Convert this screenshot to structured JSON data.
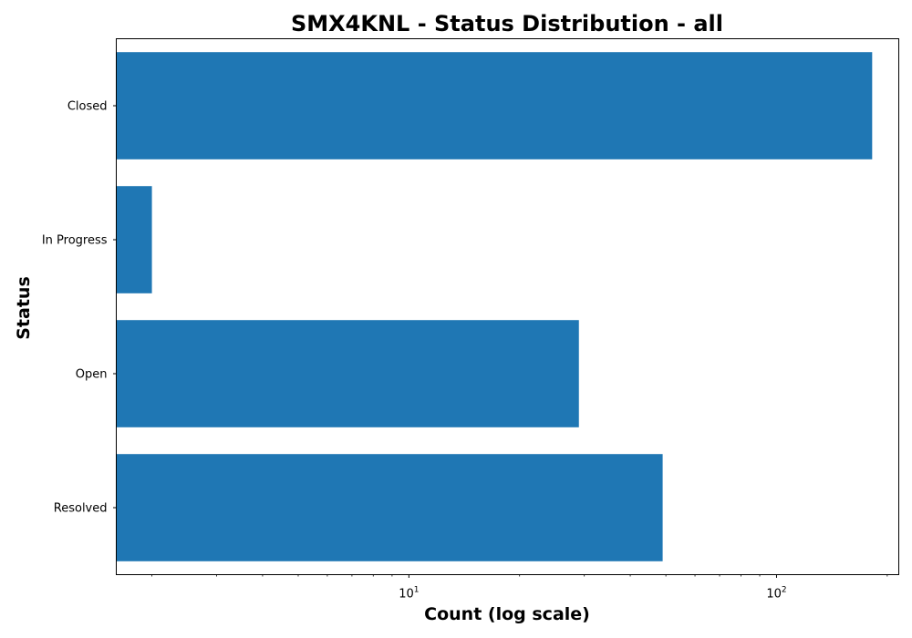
{
  "chart_data": {
    "type": "bar",
    "orientation": "horizontal",
    "title": "SMX4KNL - Status Distribution - all",
    "xlabel": "Count (log scale)",
    "ylabel": "Status",
    "x_scale": "log",
    "xlim": [
      1.6,
      215
    ],
    "categories": [
      "Closed",
      "In Progress",
      "Open",
      "Resolved"
    ],
    "values": [
      182,
      2,
      29,
      49
    ],
    "x_major_ticks": [
      {
        "value": 10,
        "base": "10",
        "exp": "1"
      },
      {
        "value": 100,
        "base": "10",
        "exp": "2"
      }
    ],
    "bar_color": "#1f77b4",
    "grid": false,
    "legend": "none"
  }
}
